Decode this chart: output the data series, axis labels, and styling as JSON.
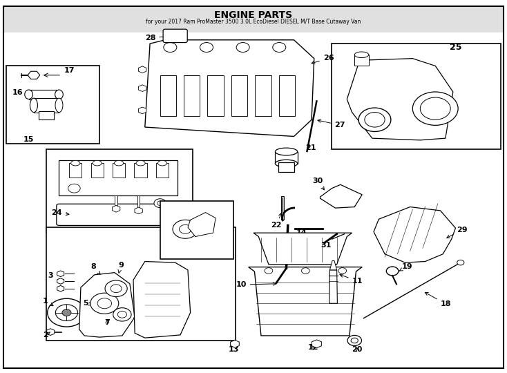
{
  "title": "ENGINE PARTS",
  "subtitle": "for your 2017 Ram ProMaster 3500 3.0L EcoDiesel DIESEL M/T Base Cutaway Van",
  "bg_color": "#ffffff",
  "line_color": "#000000",
  "text_color": "#000000",
  "fig_width": 7.34,
  "fig_height": 5.4,
  "dpi": 100
}
